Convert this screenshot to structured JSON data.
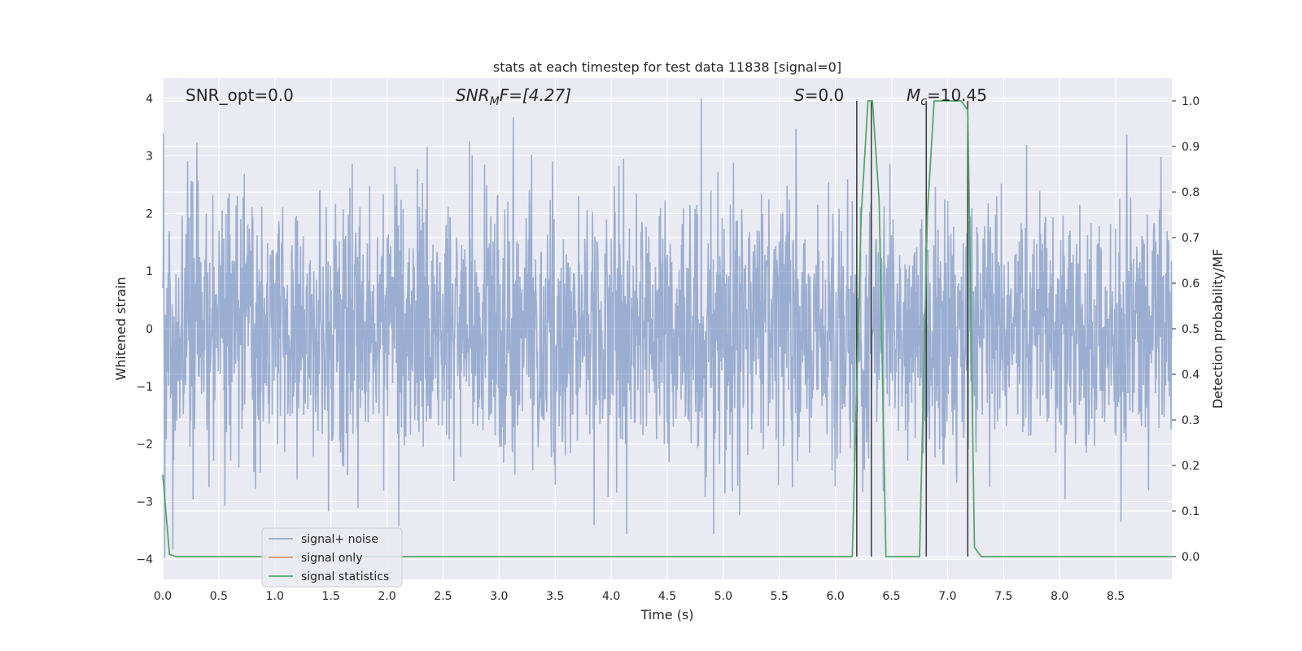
{
  "chart_data": {
    "type": "line",
    "title": "stats at each timestep for test data 11838 [signal=0]",
    "xlabel": "Time (s)",
    "ylabel": "Whitened strain",
    "y2label": "Detection probability/MF",
    "xlim": [
      0.0,
      9.0
    ],
    "ylim": [
      -4.35,
      4.35
    ],
    "y2lim": [
      -0.05,
      1.05
    ],
    "xticks": [
      "0.0",
      "0.5",
      "1.0",
      "1.5",
      "2.0",
      "2.5",
      "3.0",
      "3.5",
      "4.0",
      "4.5",
      "5.0",
      "5.5",
      "6.0",
      "6.5",
      "7.0",
      "7.5",
      "8.0",
      "8.5"
    ],
    "yticks": [
      "4",
      "3",
      "2",
      "1",
      "0",
      "−1",
      "−2",
      "−3",
      "−4"
    ],
    "y2ticks": [
      "1.0",
      "0.9",
      "0.8",
      "0.7",
      "0.6",
      "0.5",
      "0.4",
      "0.3",
      "0.2",
      "0.1",
      "0.0"
    ],
    "grid": true,
    "legend_position": "lower-left",
    "annotations": {
      "snr_opt": "SNR_opt=0.0",
      "snr_mf_main": "SNR",
      "snr_mf_sub": "M",
      "snr_mf_rest": "F=[4.27]",
      "s_main": "S",
      "s_rest": "=0.0",
      "mc_main": "M",
      "mc_sub": "c",
      "mc_rest": "=10.45"
    },
    "series": [
      {
        "name": "signal+ noise",
        "color": "#4c72b0",
        "description_values": "white gaussian noise, amplitude approx ±2.5 with peaks up to ±4"
      },
      {
        "name": "signal only",
        "color": "#dd8452",
        "values": []
      },
      {
        "name": "signal statistics",
        "color": "#55a868",
        "axis": "right",
        "x": [
          0.0,
          0.06,
          0.12,
          6.15,
          6.23,
          6.29,
          6.33,
          6.39,
          6.45,
          6.75,
          6.82,
          6.88,
          7.12,
          7.18,
          7.24,
          7.3,
          9.0
        ],
        "y": [
          0.18,
          0.005,
          0.0,
          0.0,
          0.75,
          1.0,
          1.0,
          0.78,
          0.0,
          0.0,
          0.75,
          1.0,
          1.0,
          0.98,
          0.02,
          0.0,
          0.0
        ]
      }
    ],
    "vlines": [
      6.19,
      6.32,
      6.81,
      7.18
    ]
  }
}
